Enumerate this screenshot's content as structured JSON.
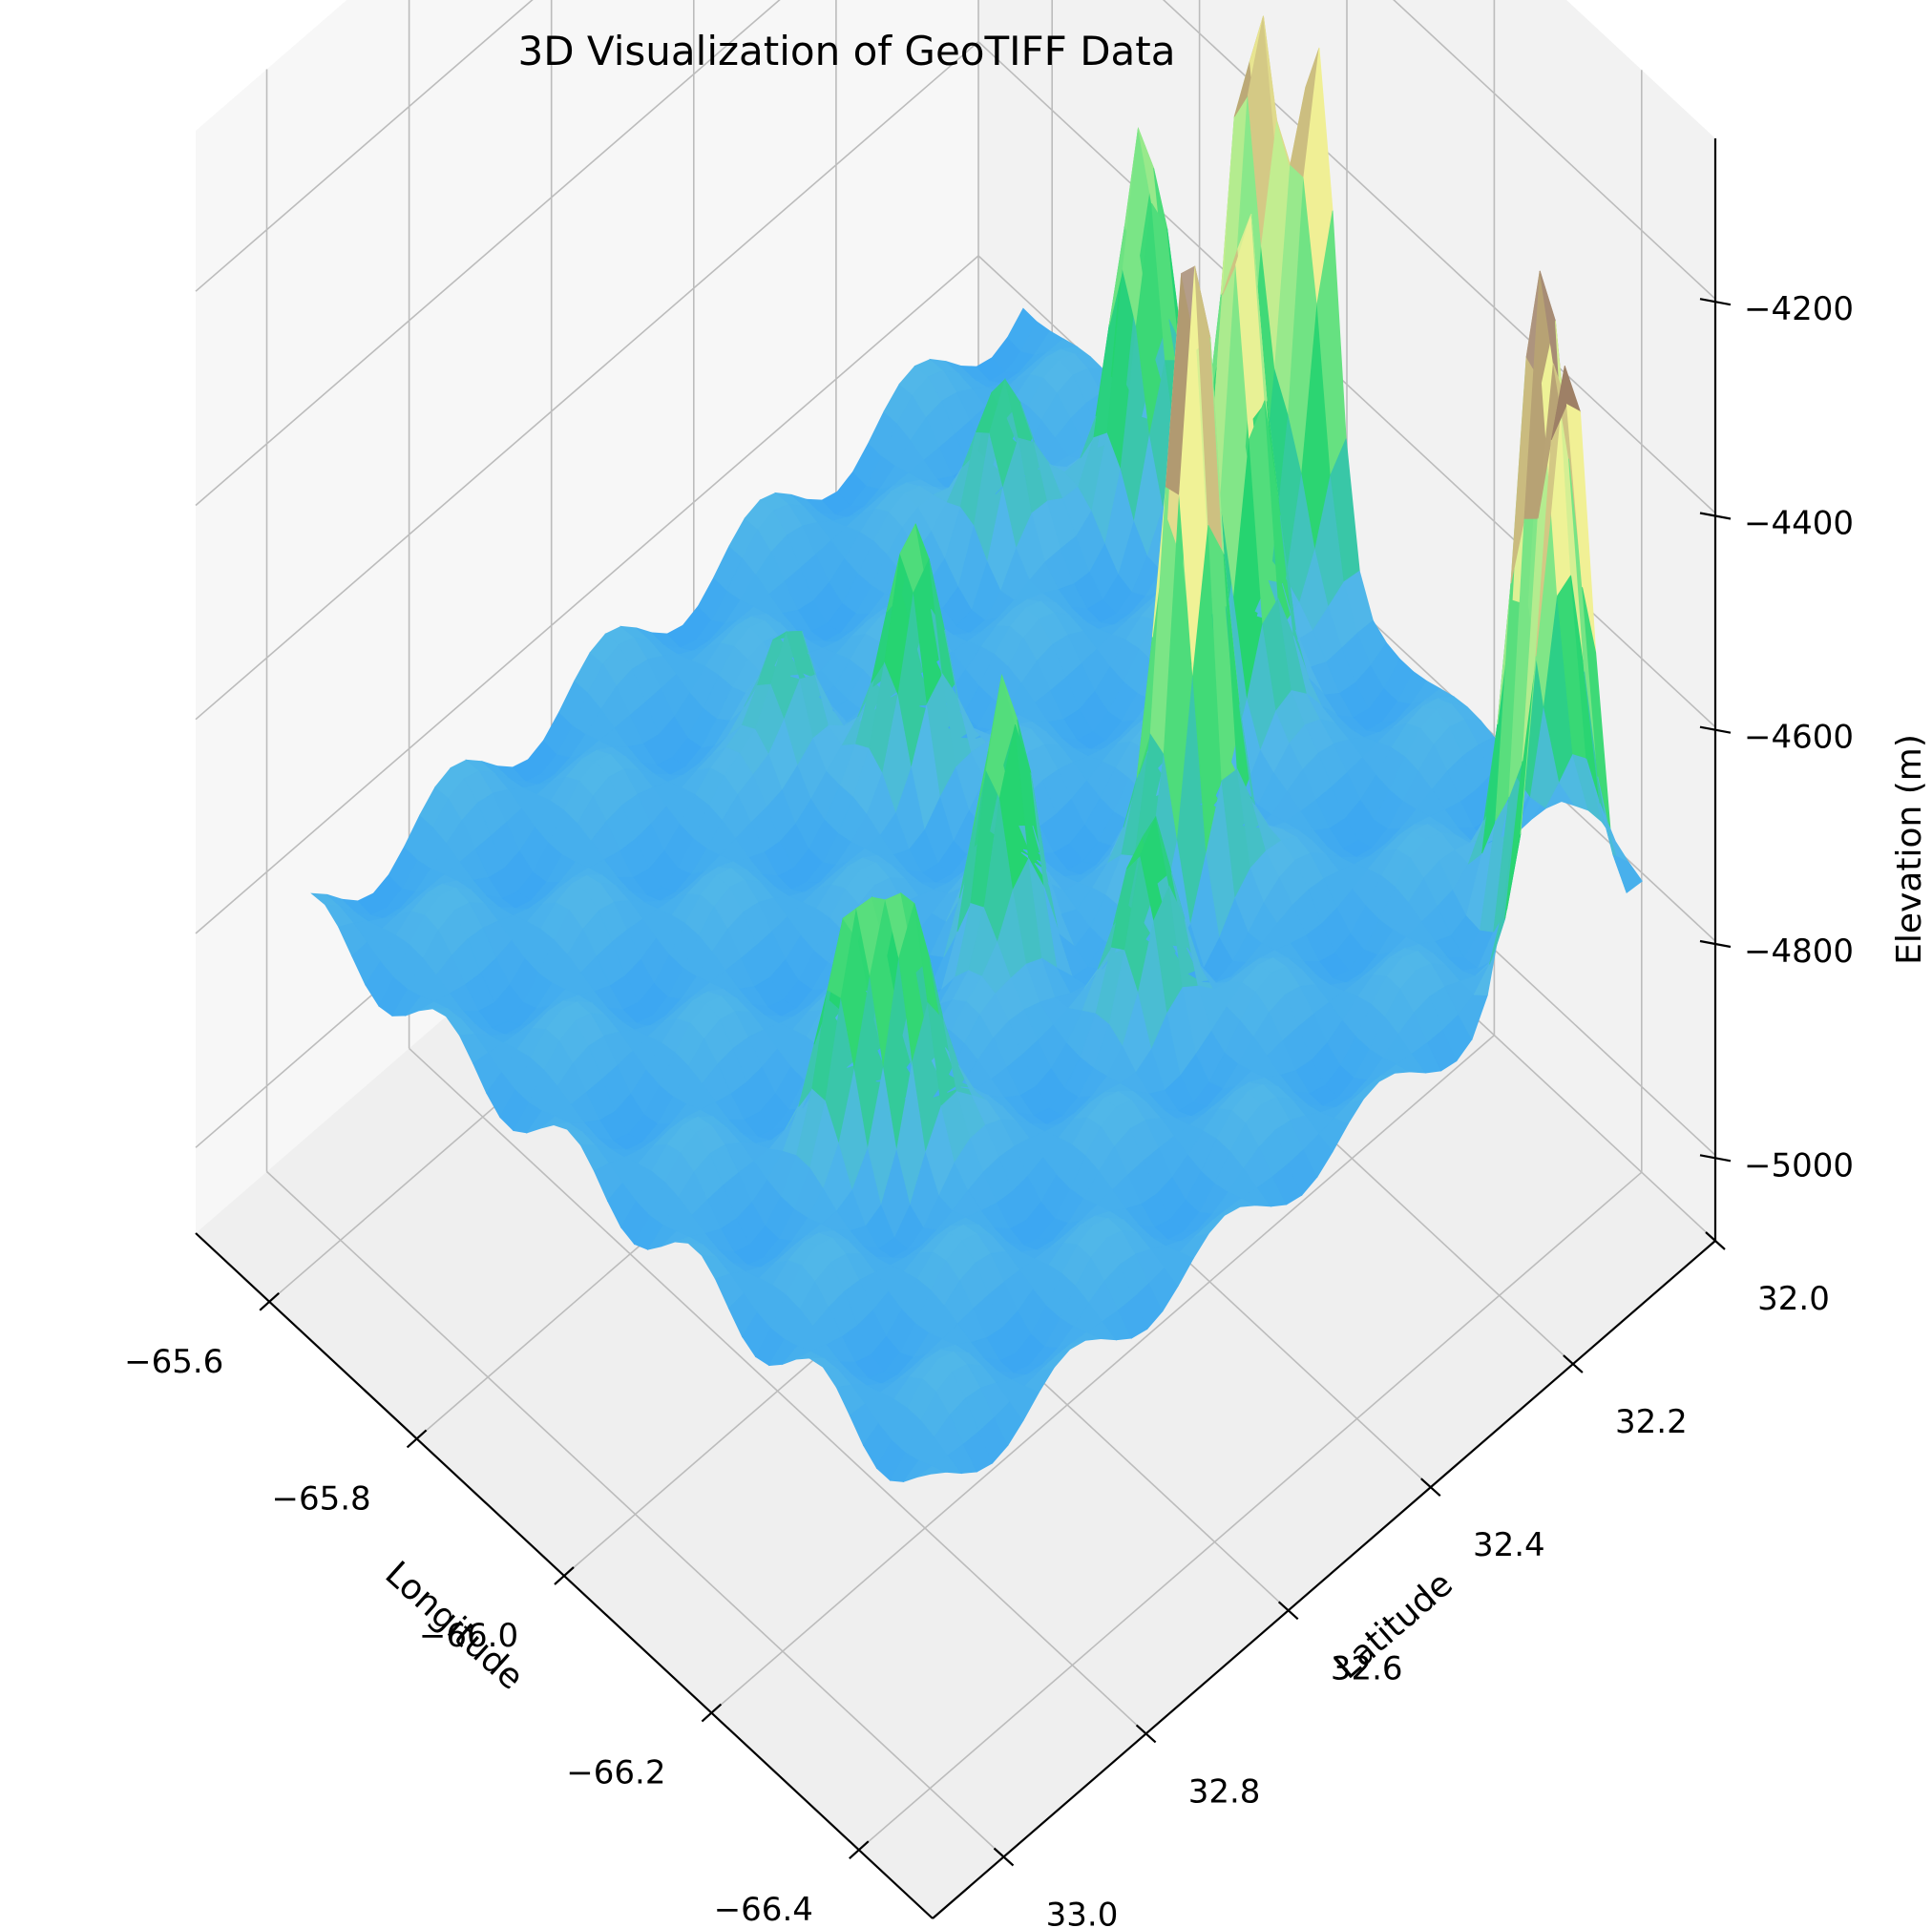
{
  "chart_data": {
    "type": "surface",
    "title": "3D Visualization of GeoTIFF Data",
    "xlabel": "Longitude",
    "ylabel": "Latitude",
    "zlabel": "Elevation (m)",
    "colormap": "terrain",
    "grid": true,
    "x_ticks": [
      -65.6,
      -65.8,
      -66.0,
      -66.2,
      -66.4
    ],
    "x_tick_labels": [
      "−65.6",
      "−65.8",
      "−66.0",
      "−66.2",
      "−66.4"
    ],
    "y_ticks": [
      32.0,
      32.2,
      32.4,
      32.6,
      32.8,
      33.0
    ],
    "y_tick_labels": [
      "32.0",
      "32.2",
      "32.4",
      "32.6",
      "32.8",
      "33.0"
    ],
    "z_ticks": [
      -4200,
      -4400,
      -4600,
      -4800,
      -5000
    ],
    "z_tick_labels": [
      "−4200",
      "−4400",
      "−4600",
      "−4800",
      "−5000"
    ],
    "zlim": [
      -5080,
      -4050
    ],
    "base_elevation": -4780,
    "peaks": [
      {
        "lon": -65.92,
        "lat": 32.05,
        "elev": -4250
      },
      {
        "lon": -65.8,
        "lat": 32.08,
        "elev": -4430
      },
      {
        "lon": -65.98,
        "lat": 32.02,
        "elev": -4300
      },
      {
        "lon": -65.74,
        "lat": 32.22,
        "elev": -4640
      },
      {
        "lon": -66.03,
        "lat": 32.18,
        "elev": -4260
      },
      {
        "lon": -65.86,
        "lat": 32.46,
        "elev": -4560
      },
      {
        "lon": -65.76,
        "lat": 32.53,
        "elev": -4650
      },
      {
        "lon": -66.12,
        "lat": 32.34,
        "elev": -4170
      },
      {
        "lon": -66.06,
        "lat": 32.54,
        "elev": -4520
      },
      {
        "lon": -66.2,
        "lat": 32.48,
        "elev": -4620
      },
      {
        "lon": -66.36,
        "lat": 32.1,
        "elev": -4220
      },
      {
        "lon": -66.42,
        "lat": 32.12,
        "elev": -4270
      },
      {
        "lon": -66.46,
        "lat": 32.18,
        "elev": -4190
      },
      {
        "lon": -66.14,
        "lat": 32.76,
        "elev": -4560
      },
      {
        "lon": -66.1,
        "lat": 32.8,
        "elev": -4600
      }
    ]
  }
}
